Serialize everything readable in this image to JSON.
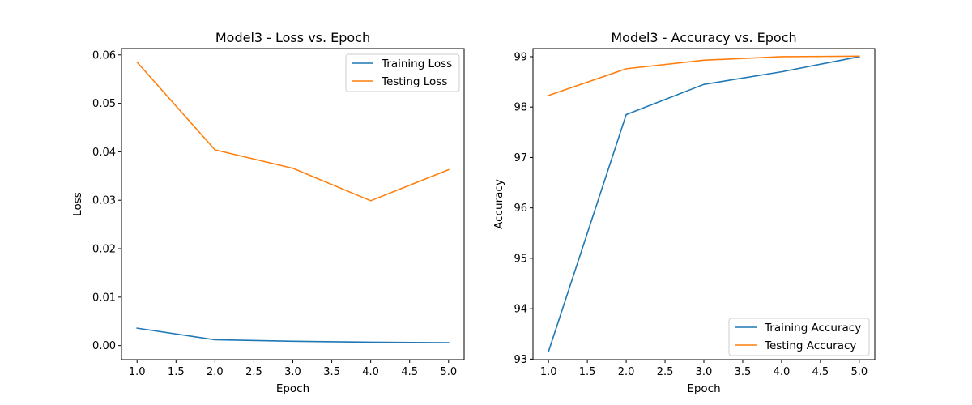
{
  "chart_data": [
    {
      "type": "line",
      "title": "Model3 - Loss vs. Epoch",
      "xlabel": "Epoch",
      "ylabel": "Loss",
      "x": [
        1,
        2,
        3,
        4,
        5
      ],
      "xlim": [
        0.8,
        5.2
      ],
      "ylim": [
        -0.0029,
        0.0613
      ],
      "xticks": [
        1.0,
        1.5,
        2.0,
        2.5,
        3.0,
        3.5,
        4.0,
        4.5,
        5.0
      ],
      "xtick_labels": [
        "1.0",
        "1.5",
        "2.0",
        "2.5",
        "3.0",
        "3.5",
        "4.0",
        "4.5",
        "5.0"
      ],
      "yticks": [
        0.0,
        0.01,
        0.02,
        0.03,
        0.04,
        0.05,
        0.06
      ],
      "ytick_labels": [
        "0.00",
        "0.01",
        "0.02",
        "0.03",
        "0.04",
        "0.05",
        "0.06"
      ],
      "grid": false,
      "legend_position": "upper right",
      "series": [
        {
          "name": "Training Loss",
          "color": "#1f77b4",
          "values": [
            0.0036,
            0.0012,
            0.0009,
            0.0007,
            0.0006
          ]
        },
        {
          "name": "Testing Loss",
          "color": "#ff7f0e",
          "values": [
            0.0585,
            0.0404,
            0.0366,
            0.0299,
            0.0363
          ]
        }
      ]
    },
    {
      "type": "line",
      "title": "Model3 - Accuracy vs. Epoch",
      "xlabel": "Epoch",
      "ylabel": "Accuracy",
      "x": [
        1,
        2,
        3,
        4,
        5
      ],
      "xlim": [
        0.8,
        5.2
      ],
      "ylim": [
        92.99,
        99.16
      ],
      "xticks": [
        1.0,
        1.5,
        2.0,
        2.5,
        3.0,
        3.5,
        4.0,
        4.5,
        5.0
      ],
      "xtick_labels": [
        "1.0",
        "1.5",
        "2.0",
        "2.5",
        "3.0",
        "3.5",
        "4.0",
        "4.5",
        "5.0"
      ],
      "yticks": [
        93,
        94,
        95,
        96,
        97,
        98,
        99
      ],
      "ytick_labels": [
        "93",
        "94",
        "95",
        "96",
        "97",
        "98",
        "99"
      ],
      "grid": false,
      "legend_position": "lower right",
      "series": [
        {
          "name": "Training Accuracy",
          "color": "#1f77b4",
          "values": [
            93.15,
            97.85,
            98.45,
            98.7,
            99.0
          ]
        },
        {
          "name": "Testing Accuracy",
          "color": "#ff7f0e",
          "values": [
            98.23,
            98.76,
            98.93,
            99.0,
            99.01
          ]
        }
      ]
    }
  ]
}
